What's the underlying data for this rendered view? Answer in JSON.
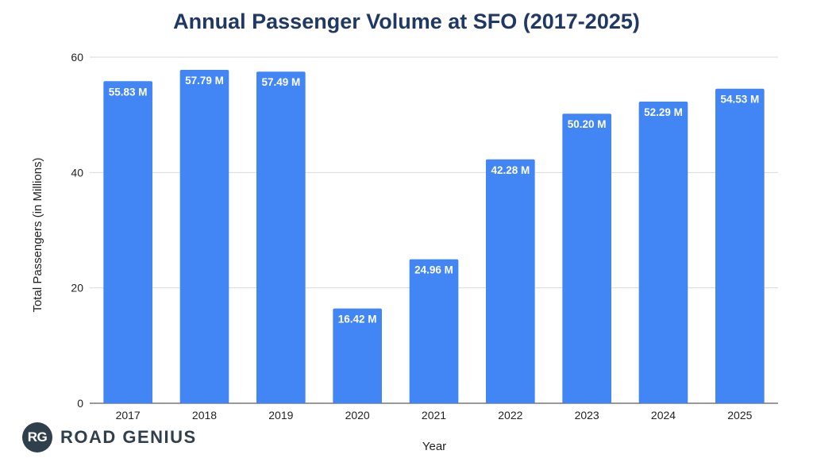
{
  "chart_data": {
    "type": "bar",
    "title": "Annual Passenger Volume at SFO (2017-2025)",
    "xlabel": "Year",
    "ylabel": "Total Passengers (in Millions)",
    "categories": [
      "2017",
      "2018",
      "2019",
      "2020",
      "2021",
      "2022",
      "2023",
      "2024",
      "2025"
    ],
    "values": [
      55.83,
      57.79,
      57.49,
      16.42,
      24.96,
      42.28,
      50.2,
      52.29,
      54.53
    ],
    "data_labels": [
      "55.83 M",
      "57.79 M",
      "57.49 M",
      "16.42 M",
      "24.96 M",
      "42.28 M",
      "50.20 M",
      "52.29 M",
      "54.53 M"
    ],
    "yticks": [
      0,
      20,
      40,
      60
    ],
    "ylim": [
      0,
      60
    ],
    "grid": true,
    "bar_color": "#4285f4",
    "label_color": "#ffffff",
    "grid_color": "#d9d9d9"
  },
  "brand": {
    "badge": "RG",
    "name": "ROAD GENIUS"
  }
}
